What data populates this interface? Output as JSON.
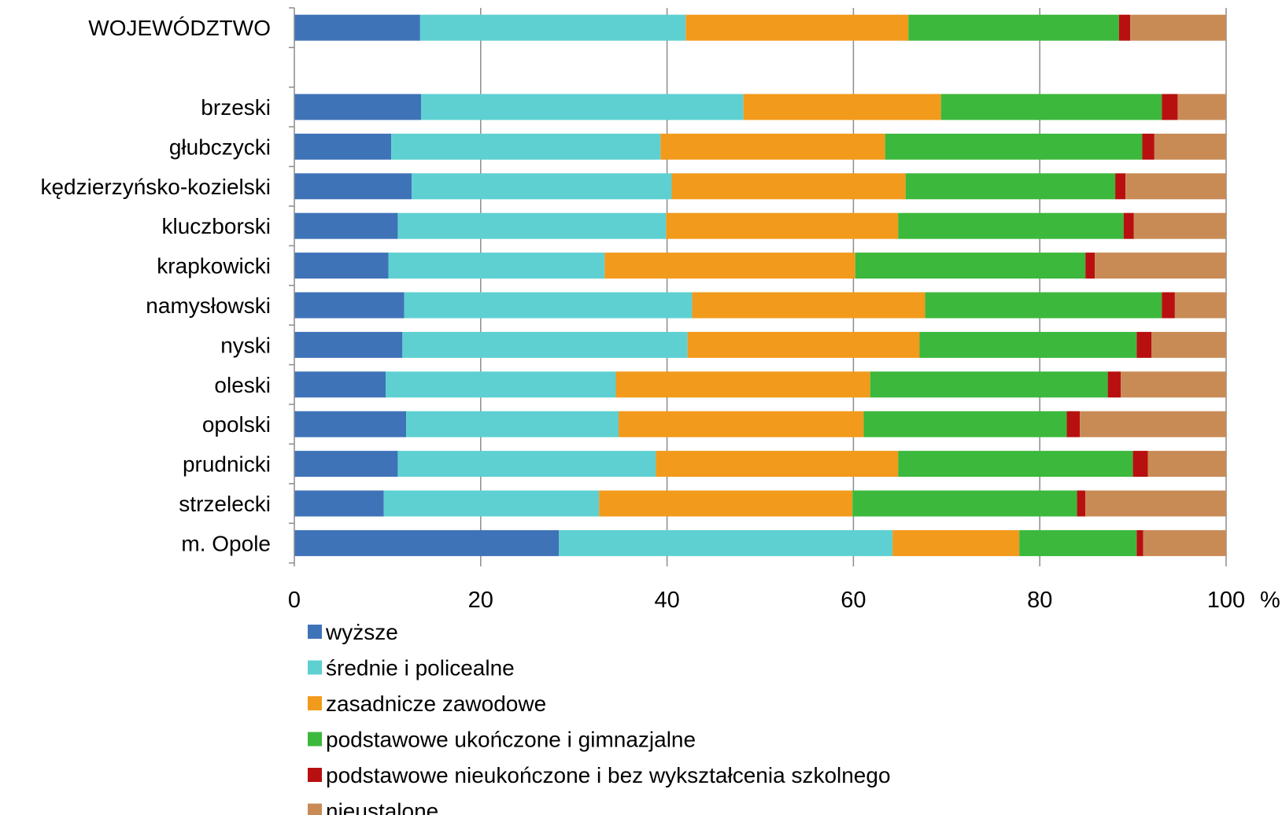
{
  "chart_data": {
    "type": "bar",
    "orientation": "horizontal",
    "stacked": true,
    "title": "",
    "xlabel": "",
    "ylabel": "",
    "unit_label": "%",
    "xlim": [
      0,
      100
    ],
    "ticks": [
      0,
      20,
      40,
      60,
      80,
      100
    ],
    "grid": true,
    "legend_position": "bottom",
    "categories": [
      "WOJEWÓDZTWO",
      "",
      "brzeski",
      "głubczycki",
      "kędzierzyńsko-kozielski",
      "kluczborski",
      "krapkowicki",
      "namysłowski",
      "nyski",
      "oleski",
      "opolski",
      "prudnicki",
      "strzelecki",
      "m. Opole"
    ],
    "series": [
      {
        "name": "wyższe",
        "color": "#3f73b8",
        "values": [
          13.5,
          null,
          13.6,
          10.4,
          12.6,
          11.1,
          10.1,
          11.8,
          11.6,
          9.8,
          12.0,
          11.1,
          9.6,
          28.4
        ]
      },
      {
        "name": "średnie i policealne",
        "color": "#5ed0d1",
        "values": [
          28.5,
          null,
          34.6,
          28.9,
          27.9,
          28.8,
          23.2,
          30.9,
          30.6,
          24.7,
          22.8,
          27.7,
          23.1,
          35.8
        ]
      },
      {
        "name": "zasadnicze zawodowe",
        "color": "#f29a1b",
        "values": [
          23.9,
          null,
          21.2,
          24.1,
          25.1,
          24.9,
          26.9,
          25.0,
          24.9,
          27.3,
          26.3,
          26.0,
          27.2,
          13.6
        ]
      },
      {
        "name": "podstawowe ukończone i gimnazjalne",
        "color": "#3cb83c",
        "values": [
          22.6,
          null,
          23.7,
          27.6,
          22.5,
          24.2,
          24.7,
          25.4,
          23.3,
          25.5,
          21.8,
          25.2,
          24.1,
          12.6
        ]
      },
      {
        "name": "podstawowe nieukończone i bez wykształcenia szkolnego",
        "color": "#b81010",
        "values": [
          1.2,
          null,
          1.7,
          1.3,
          1.1,
          1.1,
          1.0,
          1.4,
          1.6,
          1.4,
          1.4,
          1.6,
          0.9,
          0.7
        ]
      },
      {
        "name": "nieustalone",
        "color": "#c98b55",
        "values": [
          10.3,
          null,
          5.2,
          7.7,
          10.8,
          9.9,
          14.1,
          5.5,
          8.0,
          11.3,
          15.7,
          8.4,
          15.1,
          8.9
        ]
      }
    ]
  }
}
